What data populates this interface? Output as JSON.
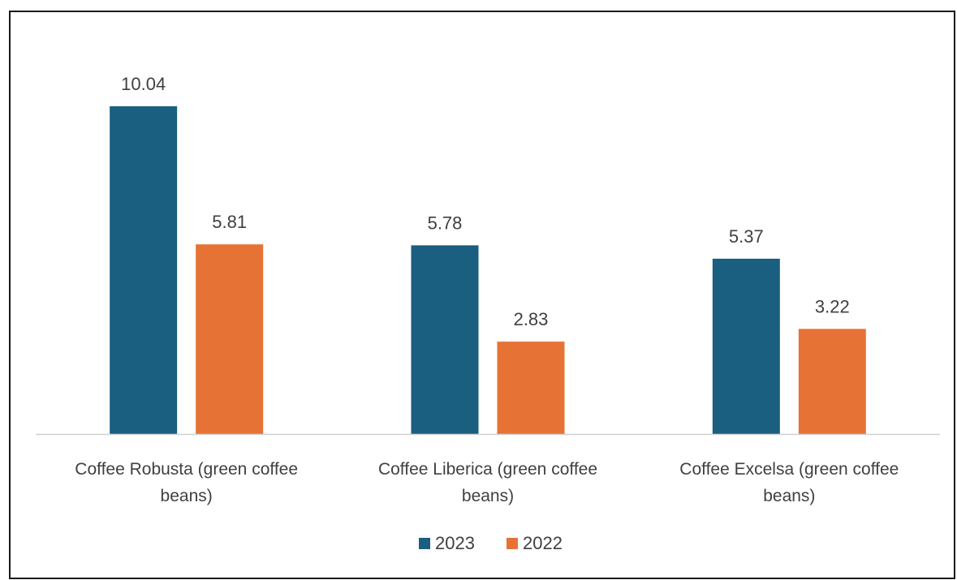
{
  "chart_data": {
    "type": "bar",
    "categories": [
      [
        "Coffee Robusta (green coffee",
        "beans)"
      ],
      [
        "Coffee Liberica (green coffee",
        "beans)"
      ],
      [
        "Coffee Excelsa (green coffee",
        "beans)"
      ]
    ],
    "series": [
      {
        "name": "2023",
        "color": "#1a5e80",
        "values": [
          10.04,
          5.78,
          5.37
        ],
        "labels": [
          "10.04",
          "5.78",
          "5.37"
        ]
      },
      {
        "name": "2022",
        "color": "#e67335",
        "values": [
          5.81,
          2.83,
          3.22
        ],
        "labels": [
          "5.81",
          "2.83",
          "3.22"
        ]
      }
    ],
    "ylim": [
      0,
      10.04
    ],
    "grid": false,
    "data_labels": true,
    "legend_position": "bottom"
  }
}
